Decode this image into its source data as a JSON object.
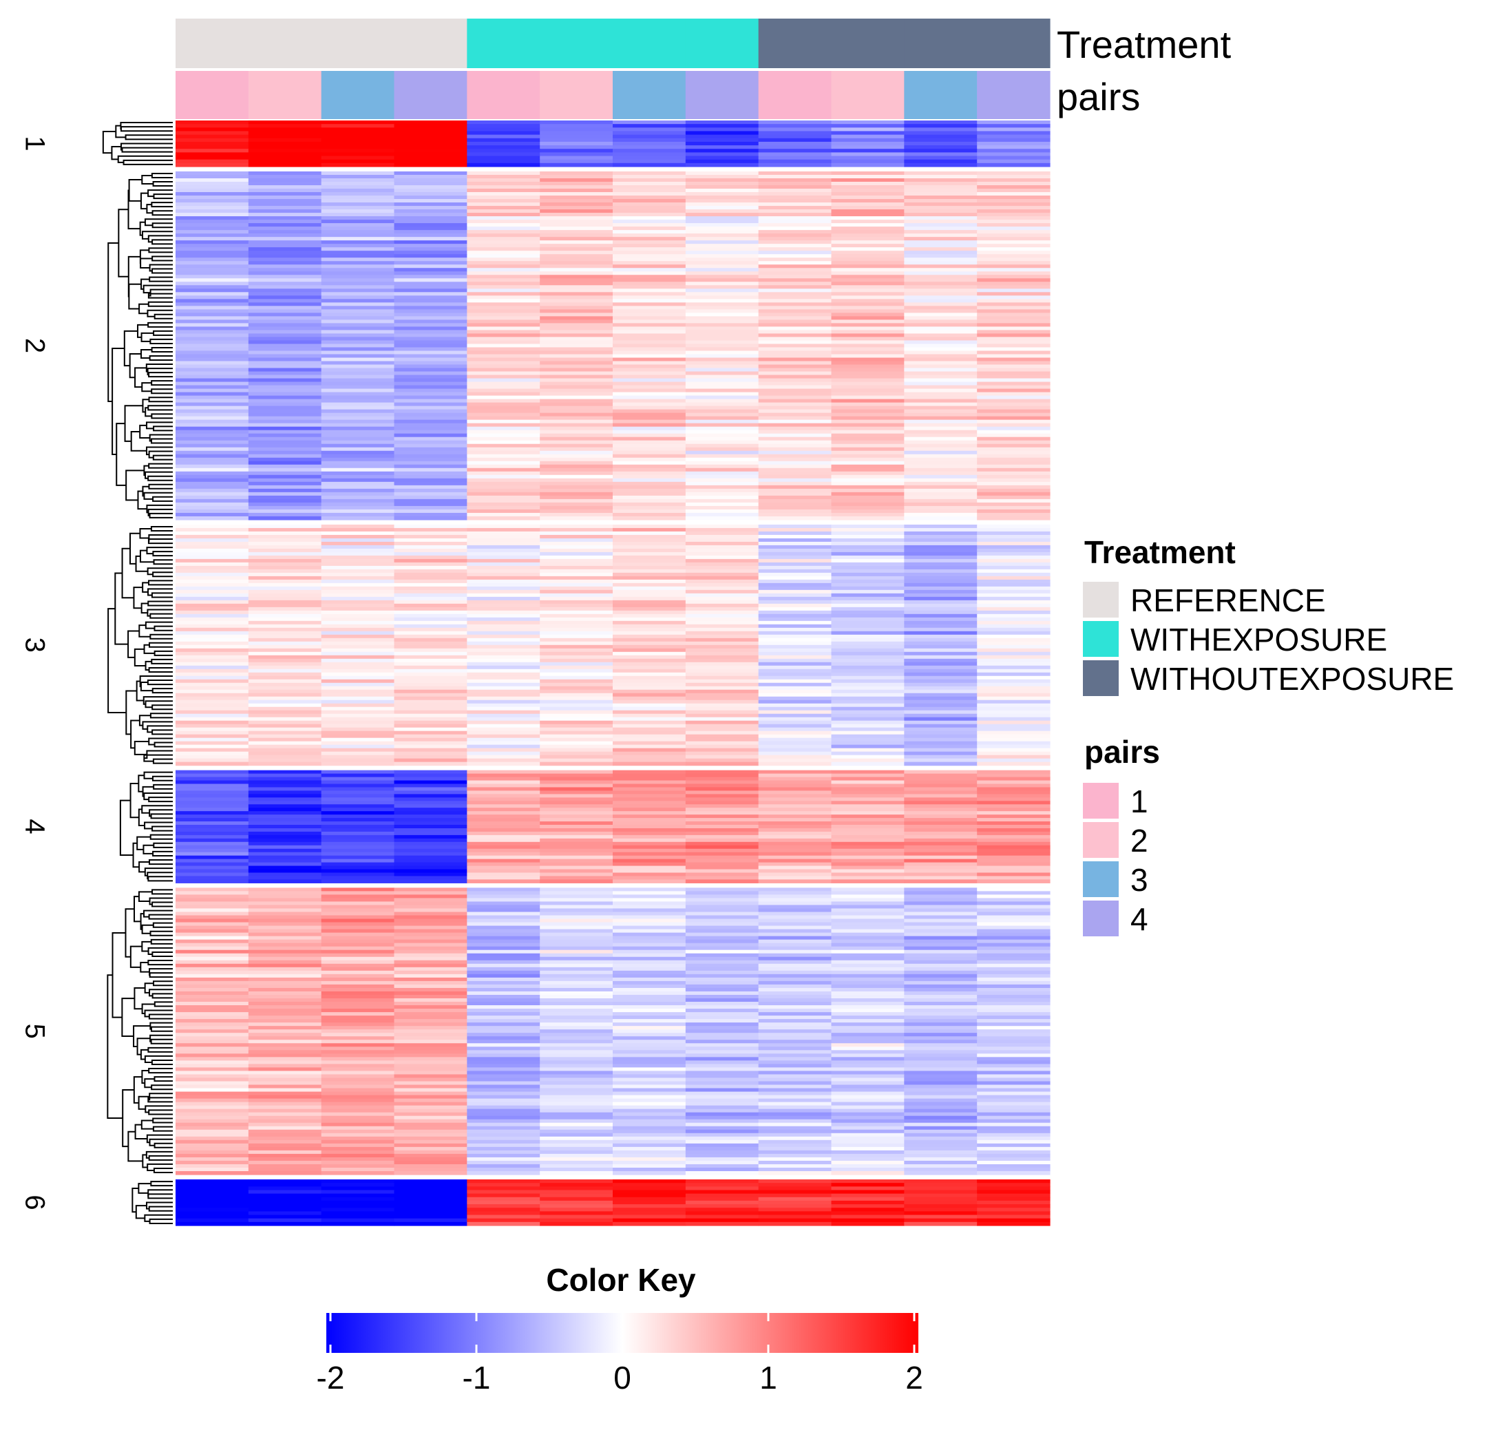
{
  "chart_data": {
    "type": "heatmap",
    "annotations": [
      {
        "name": "Treatment",
        "levels": [
          "REFERENCE",
          "WITHEXPOSURE",
          "WITHOUTEXPOSURE"
        ],
        "colors": [
          "#e5e0df",
          "#2ee3d7",
          "#62718c"
        ],
        "columns": [
          "REFERENCE",
          "REFERENCE",
          "REFERENCE",
          "REFERENCE",
          "WITHEXPOSURE",
          "WITHEXPOSURE",
          "WITHEXPOSURE",
          "WITHEXPOSURE",
          "WITHOUTEXPOSURE",
          "WITHOUTEXPOSURE",
          "WITHOUTEXPOSURE",
          "WITHOUTEXPOSURE"
        ]
      },
      {
        "name": "pairs",
        "levels": [
          "1",
          "2",
          "3",
          "4"
        ],
        "colors": [
          "#fbb4cd",
          "#fdc1cf",
          "#77b4e1",
          "#aaa5f0"
        ],
        "columns": [
          "1",
          "2",
          "3",
          "4",
          "1",
          "2",
          "3",
          "4",
          "1",
          "2",
          "3",
          "4"
        ]
      }
    ],
    "row_clusters": [
      {
        "label": "1",
        "weight": 4.5,
        "values": [
          1.9,
          2.2,
          2.0,
          2.3,
          -1.5,
          -1.1,
          -1.2,
          -1.5,
          -1.2,
          -1.0,
          -1.3,
          -1.0
        ]
      },
      {
        "label": "2",
        "weight": 34,
        "values": [
          -0.6,
          -0.8,
          -0.6,
          -0.7,
          0.3,
          0.4,
          0.3,
          0.1,
          0.3,
          0.4,
          0.2,
          0.3
        ]
      },
      {
        "label": "3",
        "weight": 23.5,
        "values": [
          0.15,
          0.25,
          0.2,
          0.25,
          0.1,
          0.2,
          0.3,
          0.3,
          -0.2,
          -0.3,
          -0.6,
          -0.1
        ]
      },
      {
        "label": "4",
        "weight": 11,
        "values": [
          -1.3,
          -1.6,
          -1.5,
          -1.6,
          0.6,
          0.7,
          0.7,
          0.8,
          0.6,
          0.6,
          0.7,
          0.8
        ]
      },
      {
        "label": "5",
        "weight": 28,
        "values": [
          0.5,
          0.6,
          0.7,
          0.6,
          -0.5,
          -0.3,
          -0.3,
          -0.5,
          -0.4,
          -0.3,
          -0.5,
          -0.4
        ]
      },
      {
        "label": "6",
        "weight": 4.5,
        "values": [
          -2.0,
          -2.0,
          -2.0,
          -2.0,
          1.6,
          1.7,
          1.8,
          1.8,
          1.7,
          1.8,
          1.8,
          1.9
        ]
      }
    ],
    "color_key": {
      "title": "Color Key",
      "range": [
        -2,
        2
      ],
      "ticks": [
        "-2",
        "-1",
        "0",
        "1",
        "2"
      ],
      "colors": [
        "#0000ff",
        "#ffffff",
        "#ff0000"
      ]
    }
  },
  "legend": {
    "treatment_title": "Treatment",
    "treatment_items": [
      "REFERENCE",
      "WITHEXPOSURE",
      "WITHOUTEXPOSURE"
    ],
    "pairs_title": "pairs",
    "pairs_items": [
      "1",
      "2",
      "3",
      "4"
    ]
  },
  "annotation_labels": {
    "treatment": "Treatment",
    "pairs": "pairs"
  }
}
